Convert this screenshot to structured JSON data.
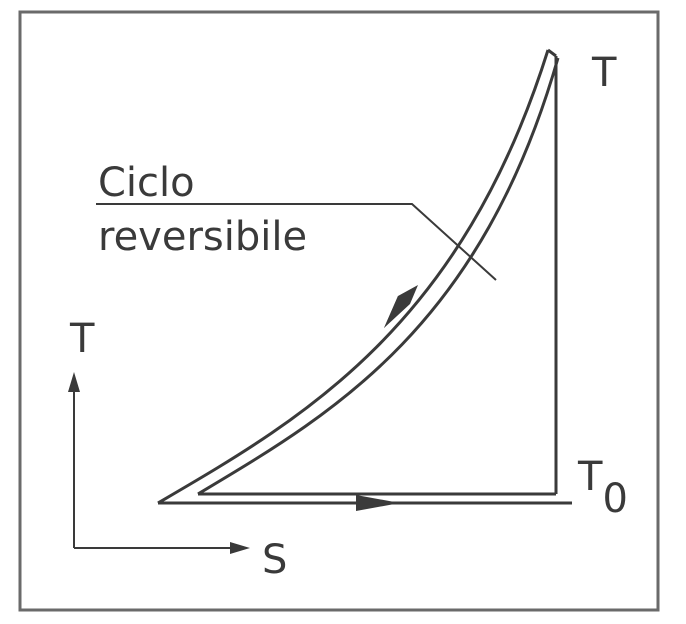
{
  "diagram": {
    "label_top_T": "T",
    "label_T0_base": "T",
    "label_T0_sub": "0",
    "axis_T": "T",
    "axis_S": "S",
    "annotation_line1": "Ciclo",
    "annotation_line2": "reversibile"
  },
  "colors": {
    "line": "#3a3a3a",
    "frame": "#6a6a6a",
    "background": "#ffffff"
  }
}
